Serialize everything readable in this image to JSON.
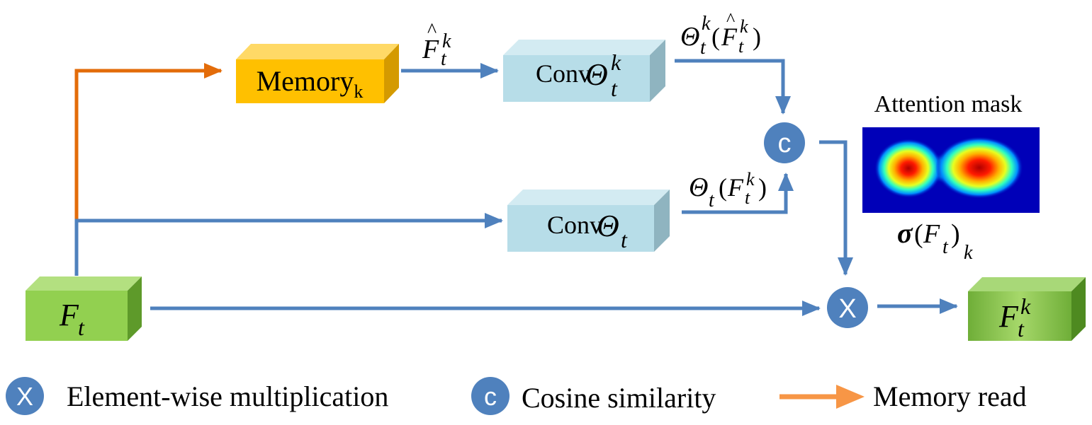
{
  "colors": {
    "flow_arrow": "#4f81bd",
    "memory_arrow": "#e36c0a",
    "legend_memory_arrow": "#f79646",
    "memory_box": "#ffc000",
    "conv_box": "#b7dde8",
    "feature_box": "#92d050",
    "operator_circle": "#4f81bd"
  },
  "nodes": {
    "memory": {
      "label": "Memory",
      "subscript": "k"
    },
    "conv_memory": {
      "label": "Conv",
      "symbol": "Θ",
      "sub": "t",
      "sup": "k"
    },
    "conv_feature": {
      "label": "Conv",
      "symbol": "Θ",
      "sub": "t"
    },
    "input_feature": {
      "symbol": "F",
      "sub": "t"
    },
    "output_feature": {
      "symbol": "F",
      "sub": "t",
      "sup": "k"
    },
    "cosine_op": {
      "glyph": "c"
    },
    "multiply_op": {
      "glyph": "X"
    }
  },
  "edge_labels": {
    "memory_read_out": {
      "hat": "^",
      "symbol": "F",
      "sub": "t",
      "sup": "k"
    },
    "conv_memory_out": {
      "theta": "Θ",
      "sub": "t",
      "sup": "k",
      "open": "(",
      "hat": "^",
      "symbol": "F",
      "isub": "t",
      "isup": "k",
      "close": ")"
    },
    "conv_feature_out": {
      "theta": "Θ",
      "sub": "t",
      "open": "(",
      "symbol": "F",
      "isub": "t",
      "isup": "k",
      "close": ")"
    }
  },
  "attention": {
    "title": "Attention mask",
    "formula": {
      "sigma": "σ",
      "open": "(",
      "symbol": "F",
      "sub": "t",
      "close": ")",
      "outer_sub": "k"
    }
  },
  "legend": {
    "multiply": {
      "glyph": "X",
      "label": "Element-wise multiplication"
    },
    "cosine": {
      "glyph": "c",
      "label": "Cosine similarity"
    },
    "memory_read": {
      "label": "Memory read"
    }
  }
}
